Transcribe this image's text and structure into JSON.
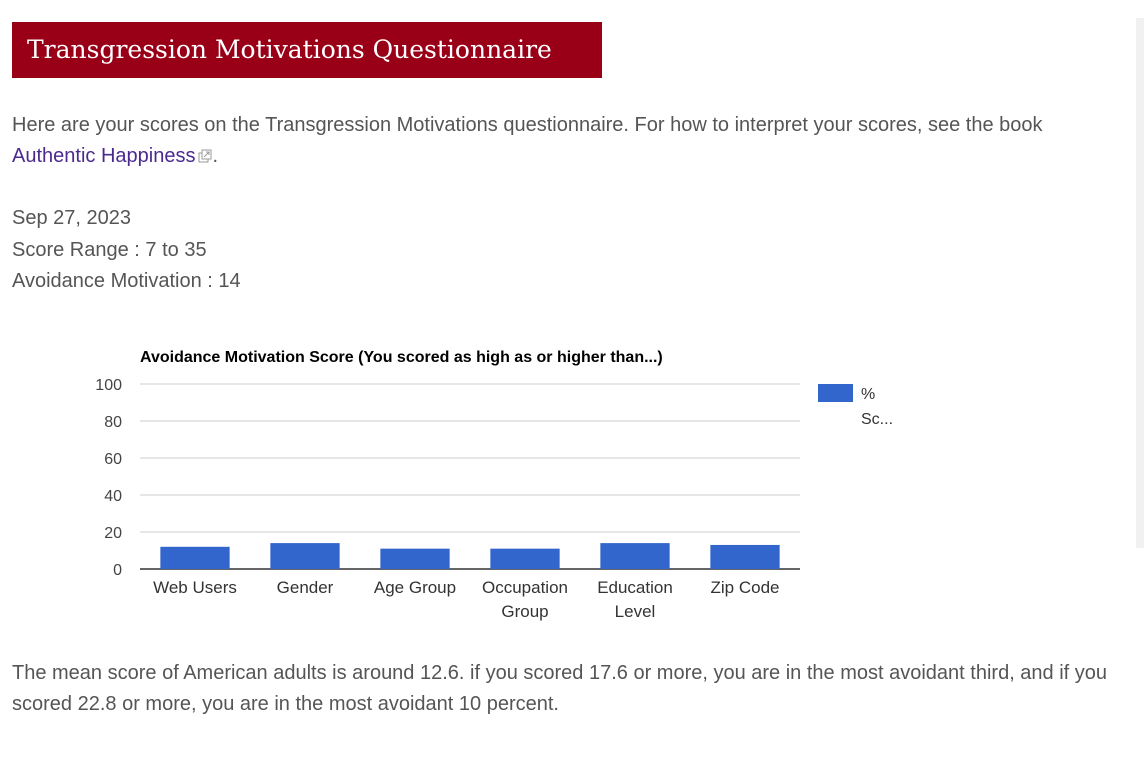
{
  "header": {
    "title": "Transgression Motivations Questionnaire"
  },
  "intro": {
    "text": "Here are your scores on the Transgression Motivations questionnaire. For how to interpret your scores, see the book ",
    "link_label": "Authentic Happiness",
    "trailing": "."
  },
  "results": {
    "date": "Sep 27, 2023",
    "score_range": "Score Range : 7 to 35",
    "score_line": "Avoidance Motivation : 14"
  },
  "chart_data": {
    "type": "bar",
    "title": "Avoidance Motivation Score (You scored as high as or higher than...)",
    "categories": [
      "Web Users",
      "Gender",
      "Age Group",
      "Occupation Group",
      "Education Level",
      "Zip Code"
    ],
    "category_lines": [
      [
        "Web Users"
      ],
      [
        "Gender"
      ],
      [
        "Age Group"
      ],
      [
        "Occupation",
        "Group"
      ],
      [
        "Education",
        "Level"
      ],
      [
        "Zip Code"
      ]
    ],
    "series": [
      {
        "name": "% Sc...",
        "legend_lines": [
          "%",
          "Sc..."
        ],
        "values": [
          12,
          14,
          11,
          11,
          14,
          13
        ],
        "color": "#3366cc"
      }
    ],
    "ylim": [
      0,
      100
    ],
    "yticks": [
      0,
      20,
      40,
      60,
      80,
      100
    ],
    "grid": true,
    "legend_position": "right"
  },
  "footer": {
    "text": "The mean score of American adults is around 12.6. if you scored 17.6 or more, you are in the most avoidant third, and if you scored 22.8 or more, you are in the most avoidant 10 percent."
  }
}
